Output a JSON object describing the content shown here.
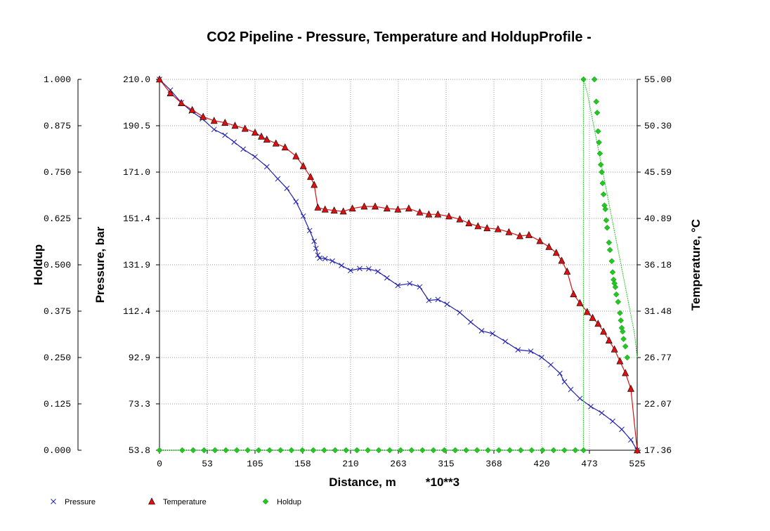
{
  "chart_data": {
    "type": "line",
    "title": "CO2 Pipeline - Pressure, Temperature and HoldupProfile -",
    "xlabel": "Distance, m",
    "xlabel_multiplier": "*10**3",
    "xlim": [
      0,
      525
    ],
    "x_ticks": [
      "0",
      "53",
      "105",
      "158",
      "210",
      "263",
      "315",
      "368",
      "420",
      "473",
      "525"
    ],
    "grid": true,
    "axes": {
      "holdup": {
        "label": "Holdup",
        "side": "far-left",
        "range": [
          0,
          1
        ],
        "ticks": [
          "0.000",
          "0.125",
          "0.250",
          "0.375",
          "0.500",
          "0.625",
          "0.750",
          "0.875",
          "1.000"
        ]
      },
      "pressure": {
        "label": "Pressure, bar",
        "side": "left",
        "range": [
          53.8,
          210.0
        ],
        "ticks": [
          "53.8",
          "73.3",
          "92.9",
          "112.4",
          "131.9",
          "151.4",
          "171.0",
          "190.5",
          "210.0"
        ]
      },
      "temperature": {
        "label": "Temperature, °C",
        "side": "right",
        "range": [
          17.36,
          55.0
        ],
        "ticks": [
          "17.36",
          "22.07",
          "26.77",
          "31.48",
          "36.18",
          "40.89",
          "45.59",
          "50.30",
          "55.00"
        ]
      }
    },
    "series": [
      {
        "name": "Pressure",
        "axis": "pressure",
        "color": "#2020b0",
        "marker": "x",
        "points": [
          [
            0,
            210.0
          ],
          [
            12,
            205.5
          ],
          [
            24,
            200.2
          ],
          [
            35,
            196.6
          ],
          [
            47,
            193.4
          ],
          [
            60,
            188.9
          ],
          [
            72,
            186.5
          ],
          [
            82,
            183.6
          ],
          [
            92,
            180.6
          ],
          [
            105,
            177.4
          ],
          [
            118,
            173.2
          ],
          [
            130,
            168.1
          ],
          [
            140,
            164.1
          ],
          [
            150,
            158.5
          ],
          [
            158,
            152.4
          ],
          [
            165,
            146.3
          ],
          [
            170,
            141.8
          ],
          [
            172,
            138.8
          ],
          [
            174,
            136.0
          ],
          [
            176,
            134.7
          ],
          [
            182,
            134.5
          ],
          [
            190,
            133.5
          ],
          [
            200,
            131.6
          ],
          [
            210,
            129.5
          ],
          [
            220,
            130.3
          ],
          [
            230,
            130.2
          ],
          [
            240,
            129.1
          ],
          [
            250,
            126.4
          ],
          [
            262,
            123.2
          ],
          [
            275,
            124.0
          ],
          [
            286,
            122.6
          ],
          [
            296,
            116.9
          ],
          [
            306,
            117.3
          ],
          [
            316,
            115.3
          ],
          [
            330,
            111.8
          ],
          [
            342,
            107.8
          ],
          [
            354,
            104.1
          ],
          [
            366,
            102.9
          ],
          [
            380,
            99.6
          ],
          [
            394,
            96.1
          ],
          [
            408,
            95.5
          ],
          [
            420,
            92.9
          ],
          [
            430,
            89.8
          ],
          [
            440,
            86.2
          ],
          [
            445,
            82.6
          ],
          [
            452,
            79.4
          ],
          [
            462,
            75.6
          ],
          [
            474,
            72.2
          ],
          [
            486,
            69.5
          ],
          [
            498,
            66.0
          ],
          [
            508,
            62.6
          ],
          [
            518,
            58.2
          ],
          [
            525,
            53.8
          ]
        ]
      },
      {
        "name": "Temperature",
        "axis": "temperature",
        "color": "#dd1111",
        "marker": "triangle",
        "points": [
          [
            0,
            55.0
          ],
          [
            12,
            53.6
          ],
          [
            24,
            52.6
          ],
          [
            36,
            51.9
          ],
          [
            48,
            51.2
          ],
          [
            60,
            50.8
          ],
          [
            72,
            50.6
          ],
          [
            83,
            50.3
          ],
          [
            94,
            50.0
          ],
          [
            105,
            49.6
          ],
          [
            112,
            49.2
          ],
          [
            118,
            48.9
          ],
          [
            128,
            48.5
          ],
          [
            138,
            48.1
          ],
          [
            150,
            47.2
          ],
          [
            158,
            46.2
          ],
          [
            166,
            45.1
          ],
          [
            170,
            44.3
          ],
          [
            174,
            42.0
          ],
          [
            182,
            41.8
          ],
          [
            192,
            41.7
          ],
          [
            202,
            41.6
          ],
          [
            212,
            41.9
          ],
          [
            225,
            42.1
          ],
          [
            237,
            42.1
          ],
          [
            250,
            41.9
          ],
          [
            262,
            41.8
          ],
          [
            274,
            41.9
          ],
          [
            286,
            41.5
          ],
          [
            296,
            41.3
          ],
          [
            306,
            41.3
          ],
          [
            318,
            41.1
          ],
          [
            330,
            40.8
          ],
          [
            340,
            40.4
          ],
          [
            350,
            40.1
          ],
          [
            360,
            39.9
          ],
          [
            372,
            39.8
          ],
          [
            384,
            39.5
          ],
          [
            396,
            39.1
          ],
          [
            406,
            39.2
          ],
          [
            418,
            38.6
          ],
          [
            428,
            38.0
          ],
          [
            436,
            37.4
          ],
          [
            442,
            36.6
          ],
          [
            448,
            35.5
          ],
          [
            455,
            33.2
          ],
          [
            462,
            32.3
          ],
          [
            470,
            31.4
          ],
          [
            476,
            30.8
          ],
          [
            482,
            30.2
          ],
          [
            488,
            29.4
          ],
          [
            494,
            28.5
          ],
          [
            500,
            27.6
          ],
          [
            506,
            26.4
          ],
          [
            512,
            25.2
          ],
          [
            518,
            23.6
          ],
          [
            525,
            17.36
          ]
        ]
      },
      {
        "name": "Holdup",
        "axis": "holdup",
        "color": "#22c822",
        "marker": "diamond",
        "points": [
          [
            0,
            0.0
          ],
          [
            466,
            0.0
          ],
          [
            466,
            1.0
          ],
          [
            466,
            1.0
          ],
          [
            470,
            0.965
          ],
          [
            474,
            0.915
          ],
          [
            478,
            0.865
          ],
          [
            482,
            0.815
          ],
          [
            486,
            0.765
          ],
          [
            490,
            0.715
          ],
          [
            494,
            0.665
          ],
          [
            498,
            0.615
          ],
          [
            502,
            0.565
          ],
          [
            506,
            0.515
          ],
          [
            510,
            0.465
          ],
          [
            514,
            0.415
          ],
          [
            518,
            0.365
          ],
          [
            522,
            0.315
          ],
          [
            525,
            0.25
          ]
        ],
        "markers": [
          [
            0,
            0.0
          ],
          [
            25,
            0.0
          ],
          [
            37,
            0.0
          ],
          [
            49,
            0.0
          ],
          [
            61,
            0.0
          ],
          [
            73,
            0.0
          ],
          [
            85,
            0.0
          ],
          [
            97,
            0.0
          ],
          [
            109,
            0.0
          ],
          [
            121,
            0.0
          ],
          [
            133,
            0.0
          ],
          [
            145,
            0.0
          ],
          [
            157,
            0.0
          ],
          [
            169,
            0.0
          ],
          [
            181,
            0.0
          ],
          [
            193,
            0.0
          ],
          [
            205,
            0.0
          ],
          [
            217,
            0.0
          ],
          [
            229,
            0.0
          ],
          [
            241,
            0.0
          ],
          [
            253,
            0.0
          ],
          [
            265,
            0.0
          ],
          [
            277,
            0.0
          ],
          [
            289,
            0.0
          ],
          [
            301,
            0.0
          ],
          [
            313,
            0.0
          ],
          [
            325,
            0.0
          ],
          [
            337,
            0.0
          ],
          [
            349,
            0.0
          ],
          [
            361,
            0.0
          ],
          [
            373,
            0.0
          ],
          [
            385,
            0.0
          ],
          [
            397,
            0.0
          ],
          [
            409,
            0.0
          ],
          [
            421,
            0.0
          ],
          [
            433,
            0.0
          ],
          [
            445,
            0.0
          ],
          [
            457,
            0.0
          ],
          [
            466,
            0.0
          ],
          [
            466,
            1.0
          ],
          [
            478,
            1.0
          ],
          [
            480,
            0.94
          ],
          [
            481,
            0.91
          ],
          [
            482,
            0.86
          ],
          [
            483,
            0.83
          ],
          [
            484,
            0.8
          ],
          [
            485,
            0.77
          ],
          [
            486,
            0.75
          ],
          [
            487,
            0.72
          ],
          [
            488,
            0.69
          ],
          [
            489,
            0.66
          ],
          [
            490,
            0.65
          ],
          [
            491,
            0.62
          ],
          [
            492,
            0.6
          ],
          [
            494,
            0.56
          ],
          [
            495,
            0.54
          ],
          [
            497,
            0.51
          ],
          [
            498,
            0.48
          ],
          [
            499,
            0.46
          ],
          [
            500,
            0.45
          ],
          [
            501,
            0.44
          ],
          [
            502,
            0.42
          ],
          [
            504,
            0.4
          ],
          [
            506,
            0.37
          ],
          [
            507,
            0.35
          ],
          [
            508,
            0.33
          ],
          [
            509,
            0.32
          ],
          [
            510,
            0.3
          ],
          [
            512,
            0.28
          ],
          [
            514,
            0.25
          ]
        ]
      }
    ],
    "legend": {
      "position": "bottom",
      "entries": [
        {
          "name": "Pressure",
          "marker": "x",
          "color": "#2020b0"
        },
        {
          "name": "Temperature",
          "marker": "triangle",
          "color": "#dd1111"
        },
        {
          "name": "Holdup",
          "marker": "diamond",
          "color": "#22c822"
        }
      ]
    }
  }
}
